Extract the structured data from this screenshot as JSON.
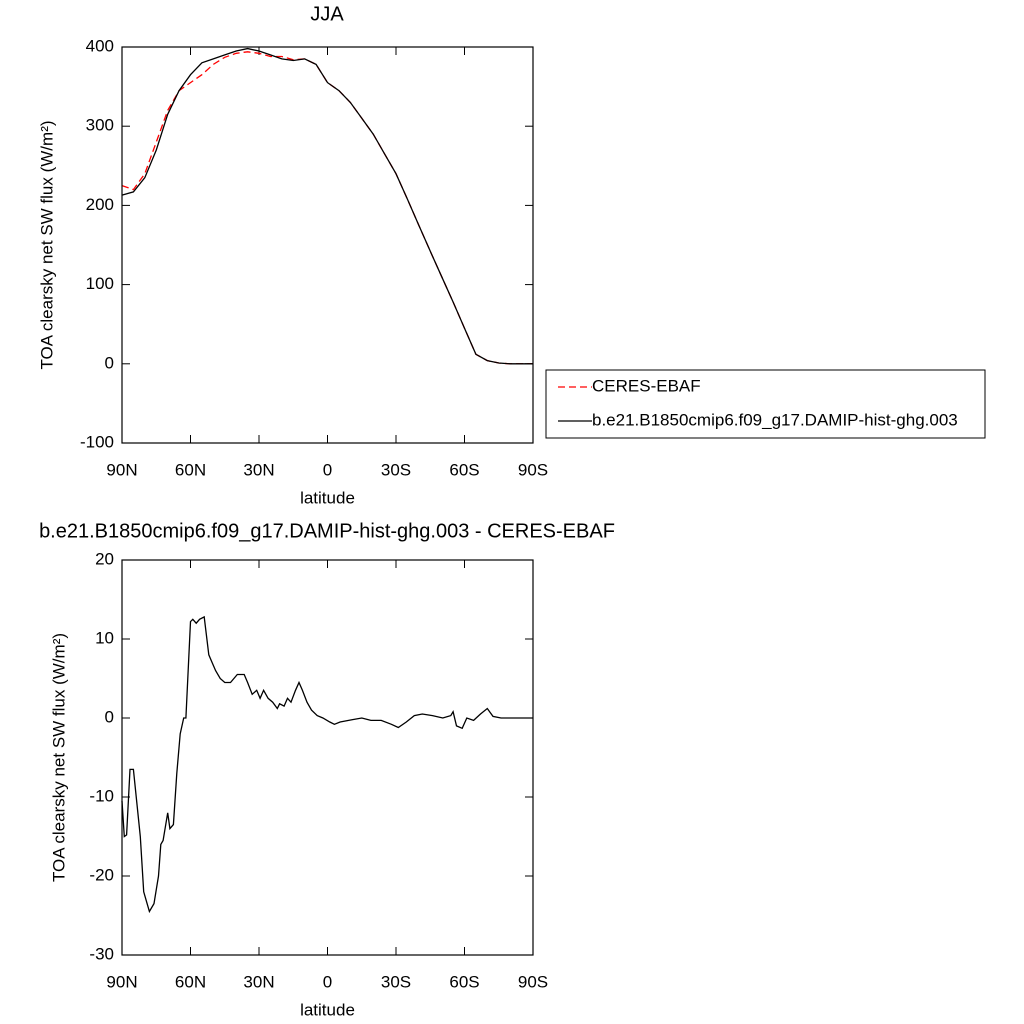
{
  "chart_data": [
    {
      "type": "line",
      "title": "JJA",
      "xlabel": "latitude",
      "ylabel": "TOA clearsky net SW flux (W/m²)",
      "xlim": [
        90,
        -90
      ],
      "xticks": [
        {
          "value": 90,
          "label": "90N"
        },
        {
          "value": 60,
          "label": "60N"
        },
        {
          "value": 30,
          "label": "30N"
        },
        0,
        {
          "value": -30,
          "label": "30S"
        },
        {
          "value": -60,
          "label": "60S"
        },
        {
          "value": -90,
          "label": "90S"
        }
      ],
      "ylim": [
        -100,
        400
      ],
      "yticks": [
        -100,
        0,
        100,
        200,
        300,
        400
      ],
      "legend": "outside-right",
      "x": [
        90,
        85,
        80,
        75,
        70,
        65,
        60,
        55,
        50,
        45,
        40,
        35,
        30,
        25,
        20,
        15,
        10,
        5,
        0,
        -5,
        -10,
        -15,
        -20,
        -25,
        -30,
        -35,
        -40,
        -45,
        -50,
        -55,
        -60,
        -65,
        -70,
        -75,
        -80,
        -85,
        -90
      ],
      "series": [
        {
          "name": "CERES-EBAF",
          "color": "#ff0000",
          "dash": true,
          "values": [
            225,
            220,
            240,
            280,
            320,
            345,
            355,
            365,
            378,
            387,
            392,
            394,
            392,
            388,
            388,
            384,
            385,
            378,
            355,
            345,
            330,
            310,
            290,
            265,
            240,
            208,
            175,
            142,
            110,
            78,
            45,
            12,
            4,
            1,
            0,
            0,
            0
          ]
        },
        {
          "name": "b.e21.B1850cmip6.f09_g17.DAMIP-hist-ghg.003",
          "color": "#000000",
          "dash": false,
          "values": [
            213,
            217,
            235,
            270,
            315,
            345,
            365,
            380,
            385,
            390,
            395,
            398,
            395,
            390,
            385,
            383,
            385,
            378,
            355,
            345,
            330,
            310,
            290,
            265,
            240,
            208,
            175,
            142,
            110,
            78,
            45,
            12,
            4,
            1,
            0,
            0,
            0
          ]
        }
      ]
    },
    {
      "type": "line",
      "title": "b.e21.B1850cmip6.f09_g17.DAMIP-hist-ghg.003 - CERES-EBAF",
      "xlabel": "latitude",
      "ylabel": "TOA clearsky net SW flux (W/m²)",
      "xlim": [
        90,
        -90
      ],
      "xticks": [
        {
          "value": 90,
          "label": "90N"
        },
        {
          "value": 60,
          "label": "60N"
        },
        {
          "value": 30,
          "label": "30N"
        },
        0,
        {
          "value": -30,
          "label": "30S"
        },
        {
          "value": -60,
          "label": "60S"
        },
        {
          "value": -90,
          "label": "90S"
        }
      ],
      "ylim": [
        -30,
        20
      ],
      "yticks": [
        -30,
        -20,
        -10,
        0,
        10,
        20
      ],
      "x": [
        90,
        89,
        88,
        86.5,
        85,
        82,
        80.5,
        79,
        78,
        76,
        74,
        73,
        72,
        70,
        69,
        67.5,
        66,
        64.5,
        63,
        62,
        60,
        59,
        57.5,
        56,
        54,
        52,
        50.5,
        49,
        47,
        45,
        42.5,
        39.5,
        36.5,
        35,
        33,
        31,
        29.5,
        28,
        26,
        24,
        22,
        21,
        19,
        17.5,
        16,
        14,
        12.5,
        11,
        9,
        7,
        4.5,
        2,
        -1,
        -3,
        -5.5,
        -11,
        -15,
        -19,
        -23.5,
        -28,
        -31,
        -34.5,
        -38,
        -41.5,
        -46,
        -50.5,
        -54,
        -55,
        -56.5,
        -59,
        -61,
        -64,
        -67,
        -70,
        -72.5,
        -76,
        -90
      ],
      "series": [
        {
          "color": "#000000",
          "dash": false,
          "values": [
            -10.5,
            -15,
            -14.8,
            -6.5,
            -6.5,
            -15,
            -22,
            -23.5,
            -24.5,
            -23.5,
            -20,
            -16,
            -15.5,
            -12,
            -14,
            -13.5,
            -7,
            -2,
            0,
            0,
            12.2,
            12.5,
            12,
            12.5,
            12.8,
            8,
            7,
            6,
            5,
            4.5,
            4.5,
            5.5,
            5.5,
            4.5,
            3,
            3.5,
            2.5,
            3.5,
            2.5,
            2,
            1.2,
            1.8,
            1.5,
            2.5,
            2,
            3.5,
            4.5,
            3.5,
            2,
            1,
            0.3,
            0,
            -0.5,
            -0.8,
            -0.5,
            -0.2,
            0,
            -0.3,
            -0.3,
            -0.8,
            -1.2,
            -0.5,
            0.3,
            0.5,
            0.3,
            0,
            0.3,
            0.8,
            -1,
            -1.3,
            0,
            -0.3,
            0.5,
            1.2,
            0.2,
            0,
            0
          ]
        }
      ]
    }
  ]
}
